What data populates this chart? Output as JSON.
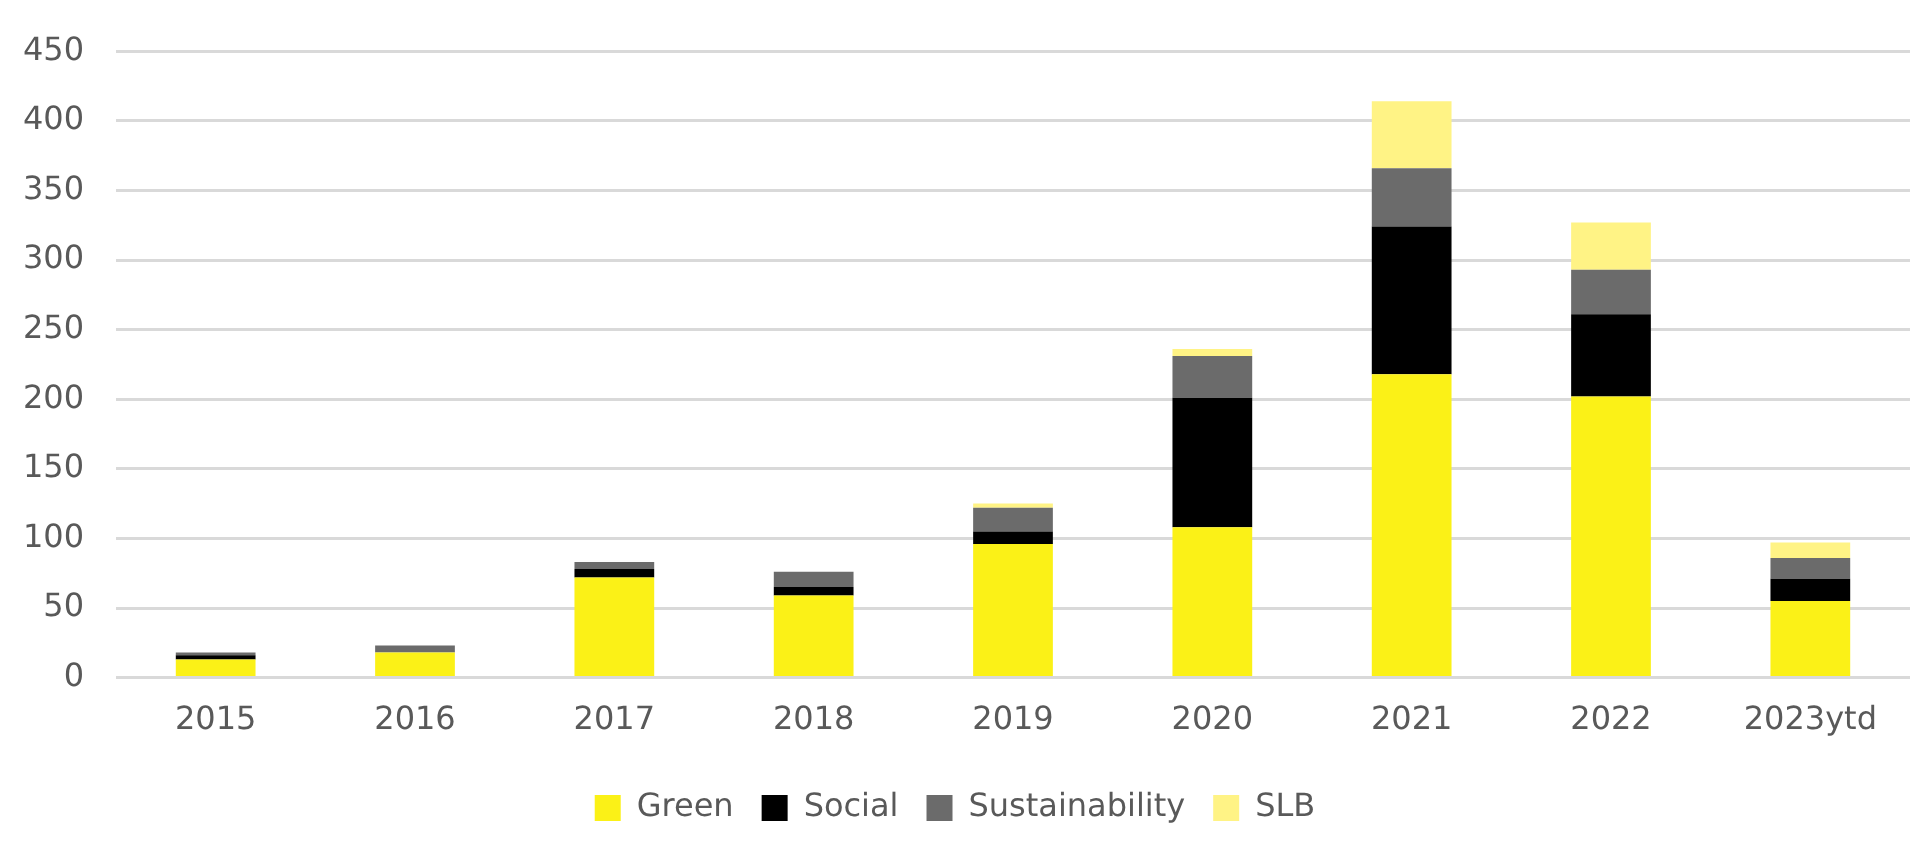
{
  "chart_data": {
    "type": "bar",
    "stacked": true,
    "categories": [
      "2015",
      "2016",
      "2017",
      "2018",
      "2019",
      "2020",
      "2021",
      "2022",
      "2023ytd"
    ],
    "series": [
      {
        "name": "Green",
        "color": "#fbf117",
        "values": [
          13,
          18,
          72,
          59,
          96,
          108,
          218,
          202,
          55
        ]
      },
      {
        "name": "Social",
        "color": "#000000",
        "values": [
          3,
          0,
          6,
          6,
          9,
          93,
          106,
          59,
          16
        ]
      },
      {
        "name": "Sustainability",
        "color": "#6b6b6b",
        "values": [
          2,
          5,
          5,
          11,
          17,
          30,
          42,
          32,
          15
        ]
      },
      {
        "name": "SLB",
        "color": "#fff385",
        "values": [
          0,
          0,
          0,
          0,
          3,
          5,
          48,
          34,
          11
        ]
      }
    ],
    "ylim": [
      0,
      450
    ],
    "yticks": [
      0,
      50,
      100,
      150,
      200,
      250,
      300,
      350,
      400,
      450
    ],
    "grid": "y",
    "legend": "bottom"
  }
}
